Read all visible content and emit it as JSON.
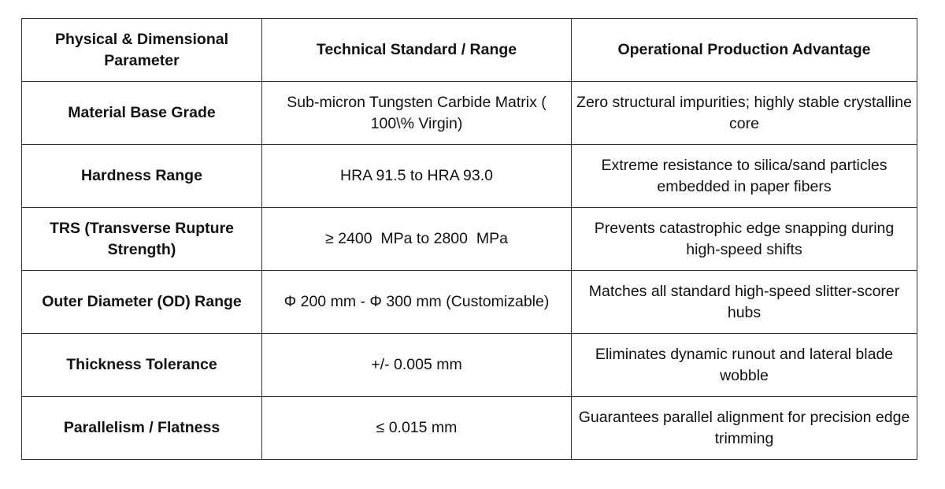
{
  "table": {
    "header": [
      "Physical & Dimensional Parameter",
      "Technical Standard / Range",
      "Operational Production Advantage"
    ],
    "rows": [
      [
        "Material Base Grade",
        "Sub-micron Tungsten Carbide Matrix ( 100\\% Virgin)",
        "Zero structural impurities; highly stable crystalline core"
      ],
      [
        "Hardness Range",
        "HRA 91.5 to HRA 93.0",
        "Extreme resistance to silica/sand particles embedded in paper fibers"
      ],
      [
        "TRS (Transverse Rupture Strength)",
        "≥ 2400  MPa to 2800  MPa",
        "Prevents catastrophic edge snapping during high-speed shifts"
      ],
      [
        "Outer Diameter (OD) Range",
        "Φ 200 mm - Φ 300 mm (Customizable)",
        "Matches all standard high-speed slitter-scorer hubs"
      ],
      [
        "Thickness Tolerance",
        "+/- 0.005 mm",
        "Eliminates dynamic runout and lateral blade wobble"
      ],
      [
        "Parallelism / Flatness",
        "≤ 0.015 mm",
        "Guarantees parallel alignment for precision edge trimming"
      ]
    ]
  }
}
